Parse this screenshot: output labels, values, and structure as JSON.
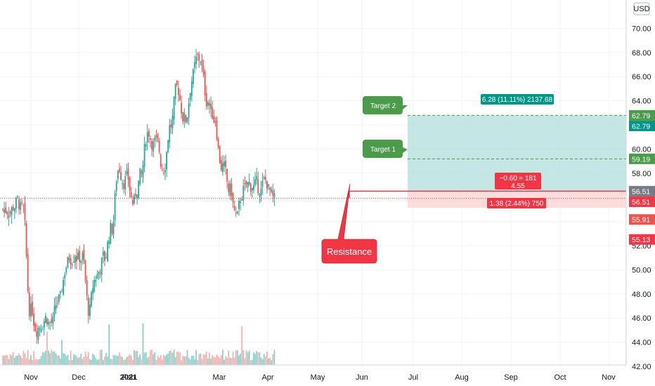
{
  "chart_data": {
    "type": "candlestick",
    "currency": "USD",
    "ylim": [
      41.3,
      70.6
    ],
    "y_ticks": [
      "42.00",
      "44.00",
      "46.00",
      "48.00",
      "50.00",
      "52.00",
      "54.00",
      "56.00",
      "58.00",
      "60.00",
      "62.00",
      "64.00",
      "66.00",
      "68.00",
      "70.00"
    ],
    "x_ticks": [
      "Nov",
      "Dec",
      "2021",
      "Feb",
      "Mar",
      "Apr",
      "May",
      "Jun",
      "Jul",
      "Aug",
      "Sep",
      "Oct",
      "Nov"
    ],
    "colors": {
      "up": "#26a69a",
      "down": "#ef5350",
      "vol_up": "#80cbc4",
      "vol_down": "#f7a9a7",
      "profit_zone": "#b2dfdb",
      "loss_zone": "#fbd4d3",
      "target_green": "#4a9b4a",
      "last_price": "#f23645",
      "grey_label": "#787b86",
      "teal_label": "#009688"
    },
    "price_series": [
      {
        "date": "2020-10-15",
        "close": 55.0
      },
      {
        "date": "2020-10-22",
        "close": 55.4
      },
      {
        "date": "2020-10-29",
        "close": 54.9
      },
      {
        "date": "2020-11-05",
        "close": 46.5
      },
      {
        "date": "2020-11-12",
        "close": 45.2
      },
      {
        "date": "2020-11-19",
        "close": 46.0
      },
      {
        "date": "2020-11-26",
        "close": 45.6
      },
      {
        "date": "2020-12-03",
        "close": 47.5
      },
      {
        "date": "2020-12-10",
        "close": 50.5
      },
      {
        "date": "2020-12-17",
        "close": 51.4
      },
      {
        "date": "2020-12-24",
        "close": 51.0
      },
      {
        "date": "2020-12-31",
        "close": 46.5
      },
      {
        "date": "2021-01-07",
        "close": 49.5
      },
      {
        "date": "2021-01-14",
        "close": 51.0
      },
      {
        "date": "2021-01-21",
        "close": 53.5
      },
      {
        "date": "2021-01-28",
        "close": 58.5
      },
      {
        "date": "2021-02-04",
        "close": 57.5
      },
      {
        "date": "2021-02-11",
        "close": 55.5
      },
      {
        "date": "2021-02-18",
        "close": 57.8
      },
      {
        "date": "2021-02-25",
        "close": 61.5
      },
      {
        "date": "2021-03-04",
        "close": 60.5
      },
      {
        "date": "2021-03-11",
        "close": 58.5
      },
      {
        "date": "2021-03-18",
        "close": 62.0
      },
      {
        "date": "2021-03-25",
        "close": 65.0
      },
      {
        "date": "2021-04-01",
        "close": 62.5
      },
      {
        "date": "2021-04-08",
        "close": 66.0
      },
      {
        "date": "2021-04-15",
        "close": 67.5
      },
      {
        "date": "2021-04-22",
        "close": 64.0
      },
      {
        "date": "2021-04-29",
        "close": 62.5
      },
      {
        "date": "2021-05-06",
        "close": 58.5
      },
      {
        "date": "2021-05-13",
        "close": 56.5
      },
      {
        "date": "2021-05-20",
        "close": 54.3
      },
      {
        "date": "2021-05-27",
        "close": 56.6
      },
      {
        "date": "2021-06-03",
        "close": 57.0
      },
      {
        "date": "2021-06-10",
        "close": 56.8
      },
      {
        "date": "2021-06-17",
        "close": 57.3
      },
      {
        "date": "2021-06-24",
        "close": 55.7
      }
    ],
    "price_lines": [
      {
        "label": "62.79",
        "value": 62.79,
        "color": "#4a9b4a"
      },
      {
        "label": "62.79",
        "value": 62.79,
        "color": "#009688"
      },
      {
        "label": "59.19",
        "value": 59.19,
        "color": "#4a9b4a"
      },
      {
        "label": "56.51",
        "value": 56.51,
        "color": "#787b86"
      },
      {
        "label": "56.51",
        "value": 56.51,
        "color": "#f23645"
      },
      {
        "label": "55.91",
        "value": 55.91,
        "color": "#ef5350"
      },
      {
        "label": "55.13",
        "value": 55.13,
        "color": "#f23645"
      }
    ],
    "annotations": {
      "target2": "Target 2",
      "target1": "Target 1",
      "resistance": "Resistance",
      "profit": "6.28 (11.11%) 2137.68",
      "loss": "1.38 (2.44%) 750",
      "change_line1": "−0.60 ≈ 181",
      "change_line2": "4.55"
    },
    "resistance_level": 56.51,
    "entry": 56.51,
    "target_1": 59.19,
    "target_2": 62.79,
    "stop": 55.13,
    "last_price": 55.91
  }
}
